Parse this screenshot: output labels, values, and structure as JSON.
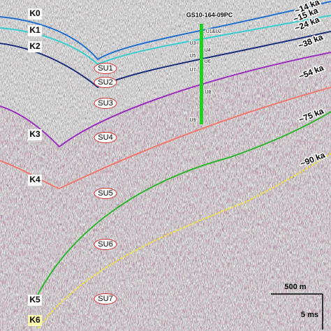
{
  "horizons": [
    "K0",
    "K1",
    "K2",
    "K3",
    "K4",
    "K5",
    "K6"
  ],
  "units": [
    "SU1",
    "SU2",
    "SU3",
    "SU4",
    "SU5",
    "SU6",
    "SU7"
  ],
  "ages": [
    "~14 ka",
    "~15 ka",
    "~24 ka",
    "~38 ka",
    "~54 ka",
    "~75 ka",
    "~90 ka"
  ],
  "core": {
    "label": "GS10-164-09PC",
    "units": [
      "U1&U2",
      "U3",
      "U4",
      "U5",
      "U6",
      "U7",
      "U8",
      "U9"
    ]
  },
  "scale": {
    "horizontal": "500 m",
    "vertical": "5 ms"
  }
}
